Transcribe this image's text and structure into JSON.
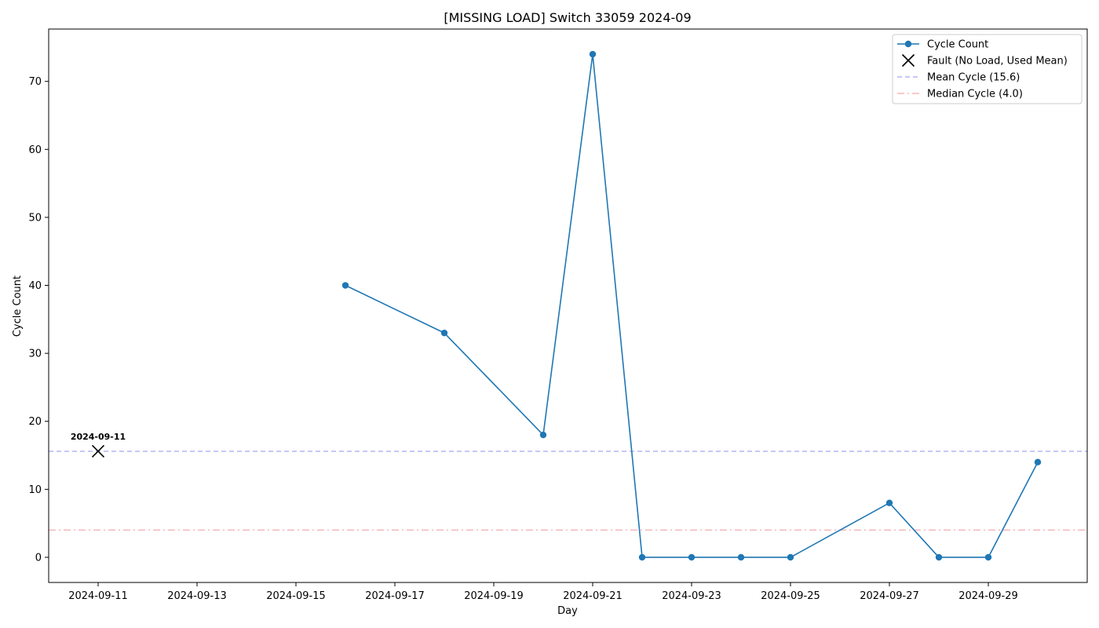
{
  "chart_data": {
    "type": "line",
    "title": "[MISSING LOAD] Switch 33059 2024-09",
    "xlabel": "Day",
    "ylabel": "Cycle Count",
    "xlim": [
      "2024-09-10",
      "2024-10-01"
    ],
    "ylim": [
      -3.7,
      77.7
    ],
    "x_ticks": [
      "2024-09-11",
      "2024-09-13",
      "2024-09-15",
      "2024-09-17",
      "2024-09-19",
      "2024-09-21",
      "2024-09-23",
      "2024-09-25",
      "2024-09-27",
      "2024-09-29"
    ],
    "y_ticks": [
      0,
      10,
      20,
      30,
      40,
      50,
      60,
      70
    ],
    "grid": false,
    "legend_position": "top-right",
    "series": [
      {
        "name": "Cycle Count",
        "color": "#1f77b4",
        "marker": "circle",
        "points": [
          {
            "x": "2024-09-16",
            "y": 40
          },
          {
            "x": "2024-09-18",
            "y": 33
          },
          {
            "x": "2024-09-20",
            "y": 18
          },
          {
            "x": "2024-09-21",
            "y": 74
          },
          {
            "x": "2024-09-22",
            "y": 0
          },
          {
            "x": "2024-09-23",
            "y": 0
          },
          {
            "x": "2024-09-24",
            "y": 0
          },
          {
            "x": "2024-09-25",
            "y": 0
          },
          {
            "x": "2024-09-27",
            "y": 8
          },
          {
            "x": "2024-09-28",
            "y": 0
          },
          {
            "x": "2024-09-29",
            "y": 0
          },
          {
            "x": "2024-09-30",
            "y": 14
          }
        ]
      }
    ],
    "faults": {
      "name": "Fault (No Load, Used Mean)",
      "color": "#000000",
      "marker": "x",
      "points": [
        {
          "x": "2024-09-11",
          "y": 15.6,
          "label": "2024-09-11"
        }
      ]
    },
    "reference_lines": [
      {
        "name": "Mean Cycle (15.6)",
        "value": 15.6,
        "color": "#b3b3f5",
        "style": "dashed"
      },
      {
        "name": "Median Cycle (4.0)",
        "value": 4.0,
        "color": "#f5b8b8",
        "style": "dashdot"
      }
    ]
  }
}
